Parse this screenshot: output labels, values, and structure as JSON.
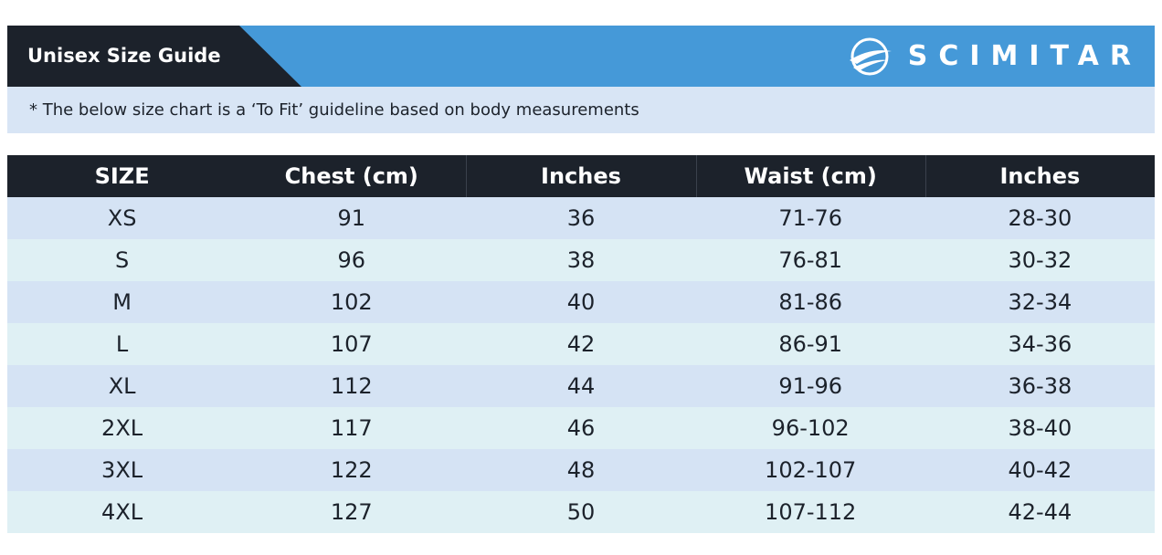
{
  "header": {
    "title": "Unisex Size Guide",
    "brand": "SCIMITAR"
  },
  "note": "* The below size chart is a ‘To Fit’ guideline based on body measurements",
  "table": {
    "columns": [
      "SIZE",
      "Chest (cm)",
      "Inches",
      "Waist (cm)",
      "Inches"
    ],
    "rows": [
      [
        "XS",
        "91",
        "36",
        "71-76",
        "28-30"
      ],
      [
        "S",
        "96",
        "38",
        "76-81",
        "30-32"
      ],
      [
        "M",
        "102",
        "40",
        "81-86",
        "32-34"
      ],
      [
        "L",
        "107",
        "42",
        "86-91",
        "34-36"
      ],
      [
        "XL",
        "112",
        "44",
        "91-96",
        "36-38"
      ],
      [
        "2XL",
        "117",
        "46",
        "96-102",
        "38-40"
      ],
      [
        "3XL",
        "122",
        "48",
        "102-107",
        "40-42"
      ],
      [
        "4XL",
        "127",
        "50",
        "107-112",
        "42-44"
      ]
    ]
  }
}
